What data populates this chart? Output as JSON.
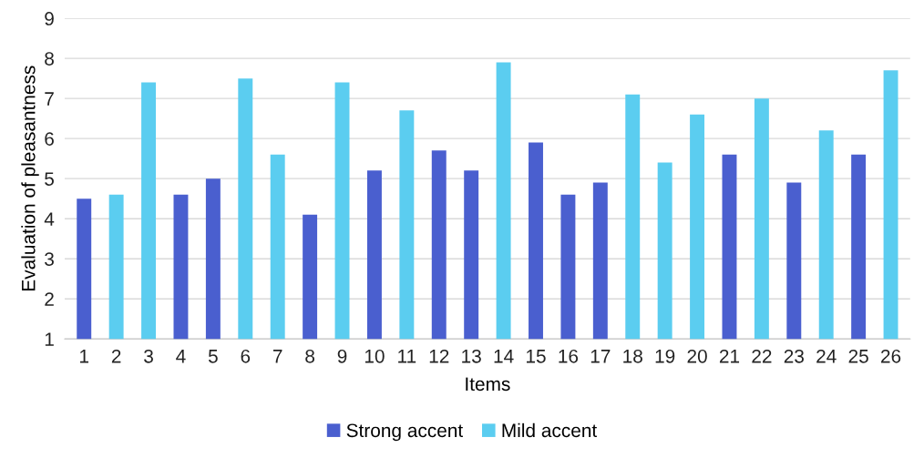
{
  "chart_data": {
    "type": "bar",
    "xlabel": "Items",
    "ylabel": "Evaluation of pleasantness",
    "categories": [
      "1",
      "2",
      "3",
      "4",
      "5",
      "6",
      "7",
      "8",
      "9",
      "10",
      "11",
      "12",
      "13",
      "14",
      "15",
      "16",
      "17",
      "18",
      "19",
      "20",
      "21",
      "22",
      "23",
      "24",
      "25",
      "26"
    ],
    "series": [
      {
        "name": "Strong accent",
        "color": "#4a5fcf",
        "values": [
          4.5,
          null,
          null,
          4.6,
          5.0,
          null,
          null,
          4.1,
          null,
          5.2,
          null,
          5.7,
          5.2,
          null,
          5.9,
          4.6,
          4.9,
          null,
          null,
          null,
          5.6,
          null,
          4.9,
          null,
          5.6,
          null
        ]
      },
      {
        "name": "Mild accent",
        "color": "#5bcdf0",
        "values": [
          null,
          4.6,
          7.4,
          null,
          null,
          7.5,
          5.6,
          null,
          7.4,
          null,
          6.7,
          null,
          null,
          7.9,
          null,
          null,
          null,
          7.1,
          5.4,
          6.6,
          null,
          7.0,
          null,
          6.2,
          null,
          7.7
        ]
      }
    ],
    "ylim": [
      1,
      9
    ],
    "yticks": [
      1,
      2,
      3,
      4,
      5,
      6,
      7,
      8,
      9
    ],
    "grid": "y",
    "legend": "bottom"
  }
}
